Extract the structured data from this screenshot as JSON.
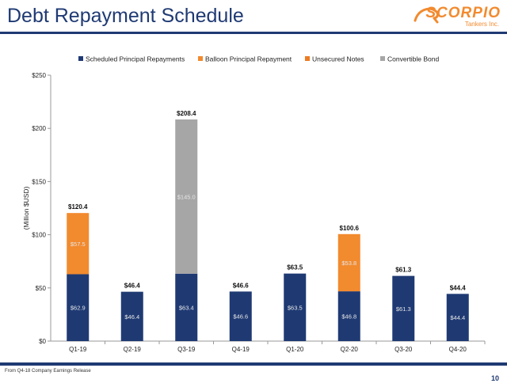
{
  "slide": {
    "title": "Debt Repayment Schedule",
    "logo_word": "SCORPIO",
    "logo_sub": "Tankers Inc.",
    "source": "From Q4-18 Company Earnings Release",
    "page_number": "10"
  },
  "colors": {
    "title": "#1f3a73",
    "scheduled": "#1f3a73",
    "balloon": "#f28a2e",
    "unsecured": "#ee7b22",
    "convertible": "#a6a6a6",
    "accent": "#f28a2e"
  },
  "chart_data": {
    "type": "bar",
    "stacked": true,
    "title": "",
    "xlabel": "",
    "ylabel": "(Million $USD)",
    "ylim": [
      0,
      250
    ],
    "yticks": [
      0,
      50,
      100,
      150,
      200,
      250
    ],
    "ytick_labels": [
      "$0",
      "$50",
      "$100",
      "$150",
      "$200",
      "$250"
    ],
    "grid": false,
    "legend_position": "top",
    "categories": [
      "Q1-19",
      "Q2-19",
      "Q3-19",
      "Q4-19",
      "Q1-20",
      "Q2-20",
      "Q3-20",
      "Q4-20"
    ],
    "series": [
      {
        "name": "Scheduled Principal Repayments",
        "color": "#1f3a73",
        "values": [
          62.9,
          46.4,
          63.4,
          46.6,
          63.5,
          46.8,
          61.3,
          44.4
        ],
        "labels": [
          "$62.9",
          "$46.4",
          "$63.4",
          "$46.6",
          "$63.5",
          "$46.8",
          "$61.3",
          "$44.4"
        ]
      },
      {
        "name": "Balloon Principal Repayment",
        "color": "#f28a2e",
        "values": [
          57.5,
          0,
          0,
          0,
          0,
          53.8,
          0,
          0
        ],
        "labels": [
          "$57.5",
          "",
          "",
          "",
          "",
          "$53.8",
          "",
          ""
        ]
      },
      {
        "name": "Unsecured Notes",
        "color": "#ee7b22",
        "values": [
          0,
          0,
          0,
          0,
          0,
          0,
          0,
          0
        ],
        "labels": [
          "",
          "",
          "",
          "",
          "",
          "",
          "",
          ""
        ]
      },
      {
        "name": "Convertible Bond",
        "color": "#a6a6a6",
        "values": [
          0,
          0,
          145.0,
          0,
          0,
          0,
          0,
          0
        ],
        "labels": [
          "",
          "",
          "$145.0",
          "",
          "",
          "",
          "",
          ""
        ]
      }
    ],
    "totals": [
      "$120.4",
      "$46.4",
      "$208.4",
      "$46.6",
      "$63.5",
      "$100.6",
      "$61.3",
      "$44.4"
    ]
  }
}
